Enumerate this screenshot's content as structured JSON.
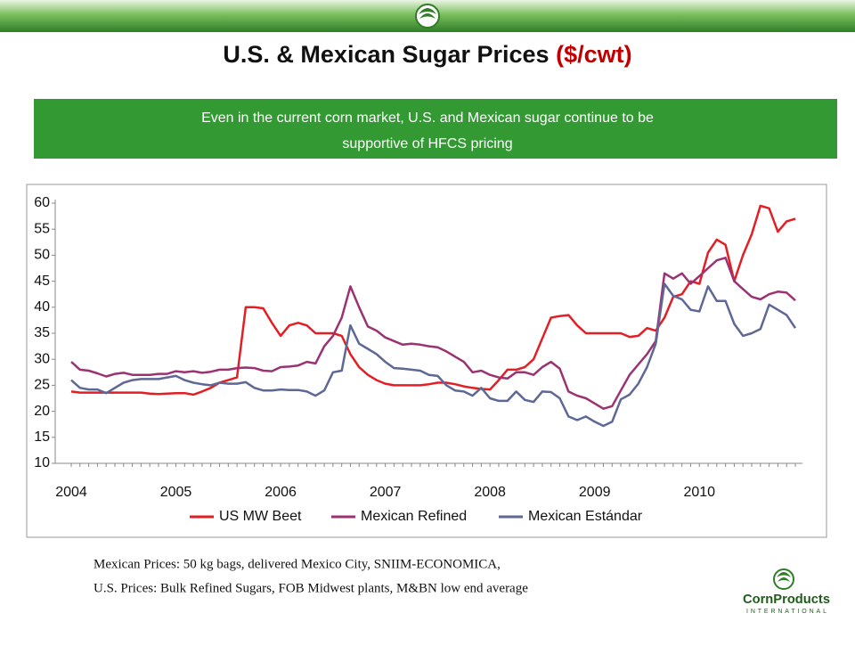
{
  "header": {
    "title": "U.S. & Mexican Sugar Prices",
    "title_unit": "($/cwt)"
  },
  "banner": {
    "lines": [
      "Even in the current corn market, U.S. and Mexican sugar continue to be",
      "supportive of HFCS pricing"
    ]
  },
  "chart_data": {
    "type": "line",
    "categories": [
      "2004",
      null,
      null,
      null,
      null,
      null,
      null,
      null,
      null,
      null,
      null,
      null,
      "2005",
      null,
      null,
      null,
      null,
      null,
      null,
      null,
      null,
      null,
      null,
      null,
      "2006",
      null,
      null,
      null,
      null,
      null,
      null,
      null,
      null,
      null,
      null,
      null,
      "2007",
      null,
      null,
      null,
      null,
      null,
      null,
      null,
      null,
      null,
      null,
      null,
      "2008",
      null,
      null,
      null,
      null,
      null,
      null,
      null,
      null,
      null,
      null,
      null,
      "2009",
      null,
      null,
      null,
      null,
      null,
      null,
      null,
      null,
      null,
      null,
      null,
      "2010",
      null,
      null,
      null,
      null,
      null,
      null,
      null,
      null,
      null,
      null,
      null
    ],
    "series": [
      {
        "name": "US MW Beet",
        "color": "#e31e24",
        "values": [
          23.8,
          23.6,
          23.6,
          23.6,
          23.6,
          23.6,
          23.6,
          23.6,
          23.6,
          23.4,
          23.3,
          23.4,
          23.5,
          23.5,
          23.2,
          23.8,
          24.5,
          25.5,
          26,
          26.5,
          40,
          40,
          39.8,
          37,
          34.5,
          36.5,
          37,
          36.5,
          35,
          35,
          35,
          34.5,
          31,
          28.5,
          27,
          26,
          25.3,
          25,
          25,
          25,
          25,
          25.2,
          25.5,
          25.5,
          25.2,
          24.8,
          24.5,
          24.3,
          24.2,
          26,
          28,
          28,
          28.5,
          30,
          34,
          38,
          38.3,
          38.5,
          36.5,
          35,
          35,
          35,
          35,
          35,
          34.3,
          34.5,
          36,
          35.5,
          38,
          42,
          42.5,
          45,
          44.5,
          50.5,
          53,
          52,
          45,
          50,
          54,
          59.5,
          59,
          54.5,
          56.5,
          57
        ]
      },
      {
        "name": "Mexican Refined",
        "color": "#9b3272",
        "values": [
          29.5,
          28,
          27.8,
          27.3,
          26.7,
          27.2,
          27.4,
          27,
          27,
          27,
          27.2,
          27.2,
          27.7,
          27.5,
          27.7,
          27.4,
          27.6,
          28,
          28,
          28.3,
          28.4,
          28.3,
          27.8,
          27.7,
          28.5,
          28.6,
          28.8,
          29.5,
          29.2,
          32.5,
          34.5,
          38,
          44,
          40,
          36.3,
          35.5,
          34.2,
          33.5,
          32.8,
          33,
          32.8,
          32.5,
          32.3,
          31.5,
          30.5,
          29.5,
          27.5,
          27.8,
          27,
          26.5,
          26.3,
          27.5,
          27.5,
          27,
          28.5,
          29.5,
          28.2,
          23.8,
          23,
          22.5,
          21.5,
          20.5,
          21,
          24,
          27,
          29,
          31,
          33.5,
          46.5,
          45.5,
          46.5,
          44.5,
          46,
          47.5,
          49,
          49.5,
          45,
          43.5,
          42,
          41.5,
          42.5,
          43,
          42.8,
          41.3
        ]
      },
      {
        "name": "Mexican Estándar",
        "color": "#5e6796",
        "values": [
          26,
          24.5,
          24.2,
          24.2,
          23.5,
          24.5,
          25.5,
          26,
          26.2,
          26.2,
          26.2,
          26.5,
          26.8,
          26,
          25.5,
          25.2,
          25,
          25.5,
          25.3,
          25.3,
          25.6,
          24.5,
          24,
          24,
          24.2,
          24.1,
          24.1,
          23.8,
          23,
          24,
          27.5,
          27.8,
          36.5,
          33,
          32,
          31,
          29.5,
          28.3,
          28.2,
          28,
          27.8,
          27,
          26.8,
          25,
          24,
          23.8,
          23,
          24.5,
          22.5,
          22,
          22,
          23.8,
          22.2,
          21.8,
          23.8,
          23.7,
          22.5,
          19,
          18.3,
          19,
          18,
          17.2,
          18,
          22.3,
          23.2,
          25.3,
          28.5,
          33,
          44.5,
          42.2,
          41.5,
          39.5,
          39.2,
          44,
          41.2,
          41.2,
          36.8,
          34.5,
          35,
          35.8,
          40.5,
          39.5,
          38.5,
          36
        ]
      }
    ],
    "ylim": [
      10,
      60
    ],
    "yticks": [
      10,
      15,
      20,
      25,
      30,
      35,
      40,
      45,
      50,
      55,
      60
    ],
    "grid": false,
    "legend": "bottom"
  },
  "footnotes": [
    "Mexican Prices:  50 kg bags, delivered Mexico City, SNIIM-ECONOMICA,",
    "U.S. Prices:  Bulk Refined Sugars, FOB Midwest plants, M&BN low end average"
  ],
  "logo": {
    "name": "CornProducts",
    "tagline": "INTERNATIONAL"
  }
}
